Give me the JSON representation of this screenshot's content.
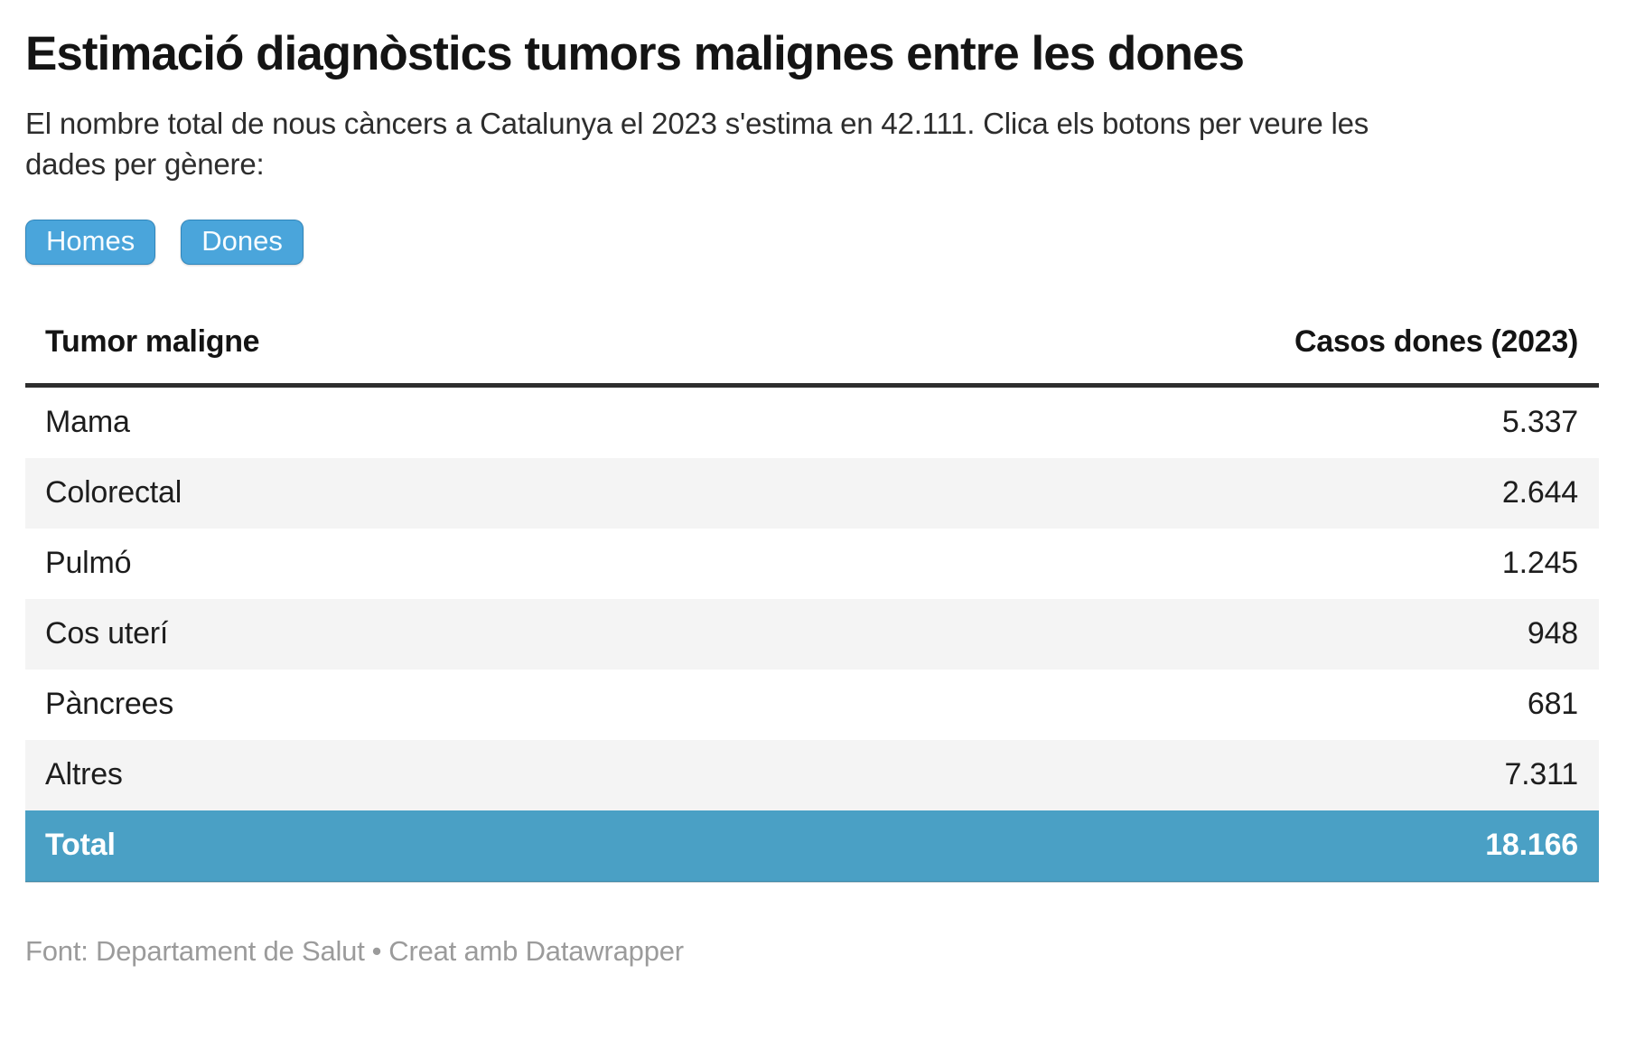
{
  "header": {
    "title": "Estimació diagnòstics tumors malignes entre les dones",
    "subtitle": "El nombre total de nous càncers a Catalunya el 2023 s'estima en 42.111. Clica els botons per veure les dades per gènere:"
  },
  "buttons": [
    {
      "label": "Homes"
    },
    {
      "label": "Dones"
    }
  ],
  "table": {
    "columns": [
      "Tumor maligne",
      "Casos dones (2023)"
    ],
    "rows": [
      {
        "label": "Mama",
        "value": "5.337"
      },
      {
        "label": "Colorectal",
        "value": "2.644"
      },
      {
        "label": "Pulmó",
        "value": "1.245"
      },
      {
        "label": "Cos uterí",
        "value": "948"
      },
      {
        "label": "Pàncrees",
        "value": "681"
      },
      {
        "label": "Altres",
        "value": "7.311"
      }
    ],
    "total": {
      "label": "Total",
      "value": "18.166"
    }
  },
  "footer": {
    "source": "Font: Departament de Salut",
    "separator": "•",
    "attribution": "Creat amb Datawrapper"
  },
  "colors": {
    "button_blue": "#4aa5db",
    "total_row_blue": "#4aa0c5",
    "stripe_gray": "#f4f4f4",
    "header_border": "#2e2e2e",
    "footer_gray": "#9b9b9b"
  },
  "chart_data": {
    "type": "table",
    "title": "Estimació diagnòstics tumors malignes entre les dones",
    "subtitle": "El nombre total de nous càncers a Catalunya el 2023 s'estima en 42.111. Clica els botons per veure les dades per gènere:",
    "columns": [
      "Tumor maligne",
      "Casos dones (2023)"
    ],
    "categories": [
      "Mama",
      "Colorectal",
      "Pulmó",
      "Cos uterí",
      "Pàncrees",
      "Altres"
    ],
    "values": [
      5337,
      2644,
      1245,
      948,
      681,
      7311
    ],
    "total": 18166,
    "total_all_cancers_catalonia_2023": 42111,
    "layout_hints": {
      "zebra_stripes": true,
      "total_row_highlighted": true,
      "value_column_align": "right"
    }
  }
}
